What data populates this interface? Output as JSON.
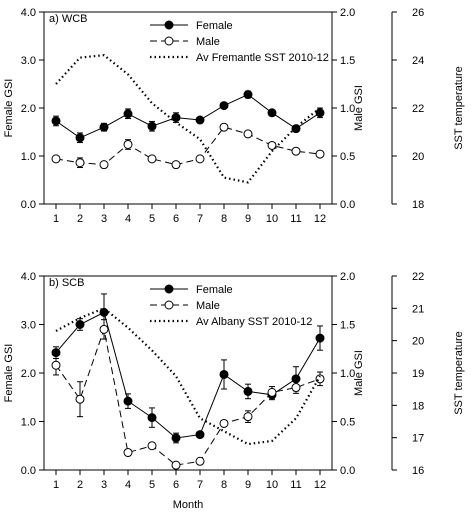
{
  "chart_data": [
    {
      "type": "line",
      "title": "a) WCB",
      "xlabel": "",
      "ylabel": "Female GSI",
      "y2label": "Male GSI",
      "y3label": "SST temperature",
      "x": [
        1,
        2,
        3,
        4,
        5,
        6,
        7,
        8,
        9,
        10,
        11,
        12
      ],
      "xlim": [
        0.5,
        12.5
      ],
      "ylim": [
        0,
        4
      ],
      "y2lim": [
        0,
        2
      ],
      "y3lim": [
        18,
        26
      ],
      "yticks": [
        "0.0",
        "1.0",
        "2.0",
        "3.0",
        "4.0"
      ],
      "y2ticks": [
        "0.0",
        "0.5",
        "1.0",
        "1.5",
        "2.0"
      ],
      "y3ticks": [
        "18",
        "20",
        "22",
        "24",
        "26"
      ],
      "legend_position": "top-center",
      "series": [
        {
          "name": "Female",
          "axis": "left",
          "style": "solid-filled-circle",
          "values": [
            1.73,
            1.38,
            1.6,
            1.88,
            1.62,
            1.8,
            1.75,
            2.05,
            2.28,
            1.9,
            1.57,
            1.9
          ],
          "errors": [
            0.1,
            0.1,
            0.08,
            0.1,
            0.1,
            0.1,
            0.05,
            0.05,
            0.07,
            0.0,
            0.05,
            0.1
          ]
        },
        {
          "name": "Male",
          "axis": "right",
          "style": "dashed-open-circle",
          "values": [
            0.47,
            0.43,
            0.41,
            0.62,
            0.47,
            0.41,
            0.47,
            0.8,
            0.73,
            0.61,
            0.55,
            0.52
          ],
          "errors": [
            0.03,
            0.05,
            0.03,
            0.05,
            0.03,
            0.02,
            0.02,
            0.02,
            0.02,
            0.02,
            0.02,
            0.03
          ]
        },
        {
          "name": "Av Fremantle SST 2010-12",
          "axis": "third",
          "style": "dotted",
          "values": [
            23.0,
            24.1,
            24.2,
            23.4,
            22.2,
            21.4,
            20.7,
            19.1,
            18.9,
            20.2,
            21.2,
            22.0
          ]
        }
      ]
    },
    {
      "type": "line",
      "title": "b) SCB",
      "xlabel": "Month",
      "ylabel": "Female GSI",
      "y2label": "Male GSI",
      "y3label": "SST temperature",
      "x": [
        1,
        2,
        3,
        4,
        5,
        6,
        7,
        8,
        9,
        10,
        11,
        12
      ],
      "xlim": [
        0.5,
        12.5
      ],
      "ylim": [
        0,
        4
      ],
      "y2lim": [
        0,
        2
      ],
      "y3lim": [
        16,
        22
      ],
      "yticks": [
        "0.0",
        "1.0",
        "2.0",
        "3.0",
        "4.0"
      ],
      "y2ticks": [
        "0.0",
        "0.5",
        "1.0",
        "1.5",
        "2.0"
      ],
      "y3ticks": [
        "16",
        "17",
        "18",
        "19",
        "20",
        "21",
        "22"
      ],
      "legend_position": "top-center",
      "series": [
        {
          "name": "Female",
          "axis": "left",
          "style": "solid-filled-circle",
          "values": [
            2.42,
            3.0,
            3.25,
            1.42,
            1.08,
            0.66,
            0.73,
            1.97,
            1.62,
            1.55,
            1.88,
            2.72
          ],
          "errors": [
            0.12,
            0.12,
            0.38,
            0.15,
            0.2,
            0.1,
            0.05,
            0.3,
            0.15,
            0.1,
            0.25,
            0.25
          ]
        },
        {
          "name": "Male",
          "axis": "right",
          "style": "dashed-open-circle",
          "values": [
            1.08,
            0.73,
            1.45,
            0.18,
            0.25,
            0.05,
            0.09,
            0.48,
            0.55,
            0.8,
            0.85,
            0.94
          ],
          "errors": [
            0.1,
            0.18,
            0.1,
            0.03,
            0.03,
            0.02,
            0.02,
            0.02,
            0.06,
            0.06,
            0.06,
            0.07
          ]
        },
        {
          "name": "Av Albany SST 2010-12",
          "axis": "third",
          "style": "dotted",
          "values": [
            20.3,
            20.7,
            21.0,
            20.4,
            19.7,
            18.9,
            17.6,
            17.2,
            16.8,
            16.9,
            17.6,
            18.9
          ]
        }
      ]
    }
  ]
}
